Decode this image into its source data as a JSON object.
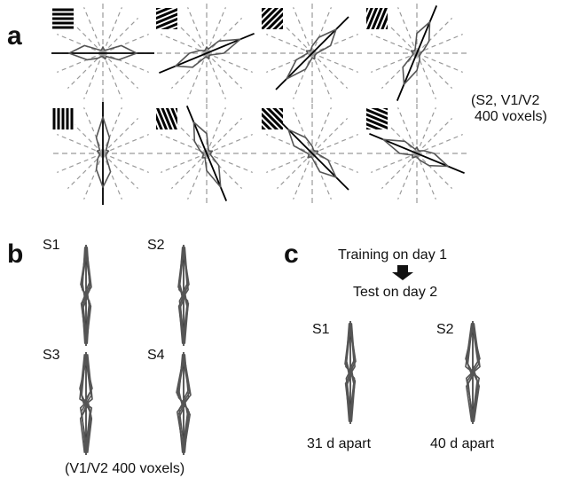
{
  "panel_a": {
    "letter": "a",
    "note_lines": [
      "(S2, V1/V2",
      "400 voxels)"
    ],
    "plots": [
      {
        "orientation_deg": 0
      },
      {
        "orientation_deg": 22.5
      },
      {
        "orientation_deg": 45
      },
      {
        "orientation_deg": 67.5
      },
      {
        "orientation_deg": 90
      },
      {
        "orientation_deg": 112.5
      },
      {
        "orientation_deg": 135
      },
      {
        "orientation_deg": 157.5
      }
    ]
  },
  "panel_b": {
    "letter": "b",
    "subjects": [
      "S1",
      "S2",
      "S3",
      "S4"
    ],
    "caption": "(V1/V2 400 voxels)"
  },
  "panel_c": {
    "letter": "c",
    "line1": "Training on day 1",
    "line2": "Test on day 2",
    "subjects": [
      "S1",
      "S2"
    ],
    "captions": [
      "31 d apart",
      "40 d apart"
    ]
  }
}
